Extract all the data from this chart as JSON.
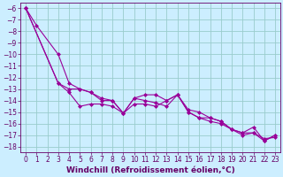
{
  "title": "",
  "xlabel": "Windchill (Refroidissement éolien,°C)",
  "ylabel": "",
  "bg_color": "#cceeff",
  "grid_color": "#99cccc",
  "line_color": "#990099",
  "marker_color": "#990099",
  "xlim": [
    -0.5,
    23.5
  ],
  "ylim": [
    -18.5,
    -5.5
  ],
  "xticks": [
    0,
    1,
    2,
    3,
    4,
    5,
    6,
    7,
    8,
    9,
    10,
    11,
    12,
    13,
    14,
    15,
    16,
    17,
    18,
    19,
    20,
    21,
    22,
    23
  ],
  "yticks": [
    -18,
    -17,
    -16,
    -15,
    -14,
    -13,
    -12,
    -11,
    -10,
    -9,
    -8,
    -7,
    -6
  ],
  "series1_x": [
    0,
    1,
    3,
    4,
    5,
    6,
    7,
    8,
    9,
    10,
    11,
    12,
    13,
    14,
    15,
    16,
    17,
    18,
    19,
    20,
    21,
    22,
    23
  ],
  "series1_y": [
    -6.0,
    -7.5,
    -10.0,
    -12.5,
    -13.0,
    -13.3,
    -13.8,
    -14.0,
    -15.1,
    -13.8,
    -14.0,
    -14.2,
    -14.5,
    -13.5,
    -14.8,
    -15.0,
    -15.5,
    -15.8,
    -16.5,
    -16.8,
    -16.3,
    -17.5,
    -17.0
  ],
  "series2_x": [
    0,
    3,
    4,
    5,
    6,
    7,
    8,
    9,
    10,
    11,
    12,
    13,
    14,
    15,
    16,
    17,
    18,
    19,
    20,
    21,
    22,
    23
  ],
  "series2_y": [
    -6.0,
    -12.5,
    -13.0,
    -13.0,
    -13.3,
    -14.0,
    -14.0,
    -15.1,
    -13.8,
    -13.5,
    -13.5,
    -14.0,
    -13.5,
    -15.0,
    -15.5,
    -15.5,
    -15.8,
    -16.5,
    -16.8,
    -16.8,
    -17.5,
    -17.0
  ],
  "series3_x": [
    0,
    3,
    4,
    5,
    6,
    7,
    8,
    9,
    10,
    11,
    12,
    13,
    14,
    15,
    16,
    17,
    18,
    19,
    20,
    21,
    22,
    23
  ],
  "series3_y": [
    -6.0,
    -12.5,
    -13.3,
    -14.5,
    -14.3,
    -14.3,
    -14.5,
    -15.1,
    -14.3,
    -14.3,
    -14.5,
    -14.0,
    -13.5,
    -15.0,
    -15.5,
    -15.8,
    -16.0,
    -16.5,
    -17.0,
    -16.8,
    -17.3,
    -17.2
  ],
  "font_color": "#660066",
  "tick_fontsize": 5.5,
  "label_fontsize": 6.5
}
